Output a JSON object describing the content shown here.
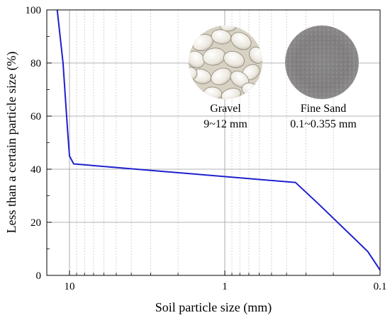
{
  "chart_data": {
    "type": "line",
    "title": "",
    "xlabel": "Soil particle size (mm)",
    "ylabel": "Less than a certain particle size (%)",
    "x_scale": "log",
    "x_reversed": true,
    "xlim": [
      14,
      0.1
    ],
    "ylim": [
      0,
      100
    ],
    "x_ticks": [
      10,
      1,
      0.1
    ],
    "x_tick_labels": [
      "10",
      "1",
      "0.1"
    ],
    "y_ticks": [
      0,
      20,
      40,
      60,
      80,
      100
    ],
    "y_tick_labels": [
      "0",
      "20",
      "40",
      "60",
      "80",
      "100"
    ],
    "grid": true,
    "line_color": "#1f1fd0",
    "series": [
      {
        "x": [
          12.0,
          11.0,
          10.3,
          10.0,
          9.4,
          0.35,
          0.25,
          0.12,
          0.1
        ],
        "y": [
          100,
          80,
          55,
          45,
          42,
          35,
          27,
          9,
          2
        ]
      }
    ],
    "annotations": [
      {
        "label": "Gravel",
        "sub": "9~12 mm",
        "image": "gravel-photo"
      },
      {
        "label": "Fine Sand",
        "sub": "0.1~0.355  mm",
        "image": "fine-sand-photo"
      }
    ]
  }
}
